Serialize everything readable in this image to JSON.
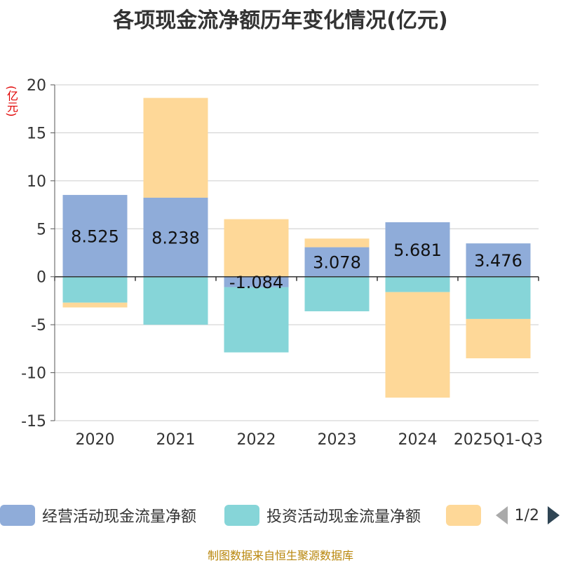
{
  "chart_data": {
    "type": "bar",
    "stacked": true,
    "title": "各项现金流净额历年变化情况(亿元)",
    "ylabel": "(亿元)",
    "ylim": [
      -15,
      20
    ],
    "yticks": [
      20,
      15,
      10,
      5,
      0,
      -5,
      -10,
      -15
    ],
    "categories": [
      "2020",
      "2021",
      "2022",
      "2023",
      "2024",
      "2025Q1-Q3"
    ],
    "series": [
      {
        "name": "经营活动现金流量净额",
        "color": "#8facd9",
        "values": [
          8.525,
          8.238,
          -1.084,
          3.078,
          5.681,
          3.476
        ],
        "show_labels": true
      },
      {
        "name": "投资活动现金流量净额",
        "color": "#86d5d8",
        "values": [
          -2.7,
          -5.0,
          -6.8,
          -3.6,
          -1.6,
          -4.4
        ],
        "show_labels": false
      },
      {
        "name": "",
        "color": "#fed898",
        "values": [
          -0.5,
          10.4,
          6.0,
          0.9,
          -11.0,
          -4.1
        ],
        "show_labels": false
      }
    ]
  },
  "legend": {
    "items": [
      {
        "label": "经营活动现金流量净额",
        "color": "#8facd9"
      },
      {
        "label": "投资活动现金流量净额",
        "color": "#86d5d8"
      },
      {
        "label": "",
        "color": "#fed898"
      }
    ],
    "page": "1/2"
  },
  "source": "制图数据来自恒生聚源数据库"
}
